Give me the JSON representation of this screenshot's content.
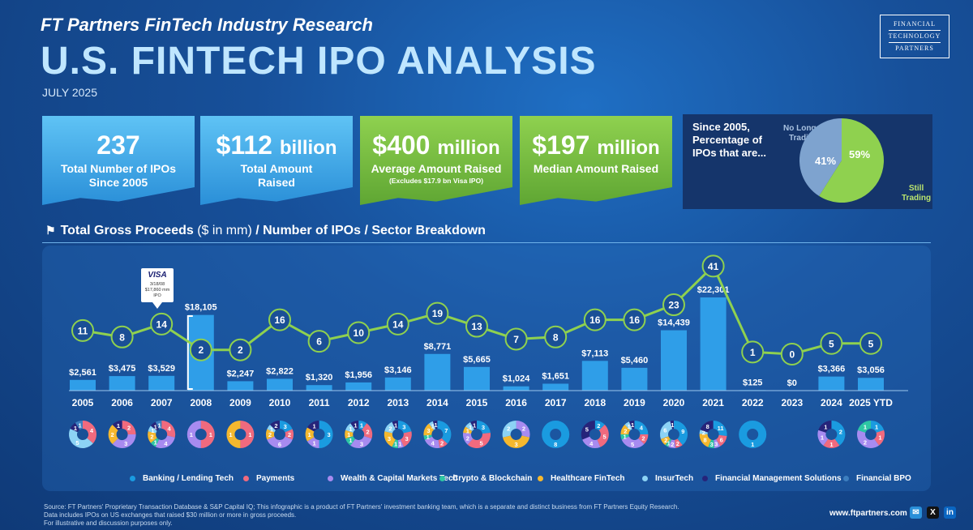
{
  "header": {
    "supertitle": "FT Partners FinTech Industry Research",
    "title": "U.S. FINTECH IPO ANALYSIS",
    "date": "JULY 2025",
    "logo": [
      "FINANCIAL",
      "TECHNOLOGY",
      "PARTNERS"
    ]
  },
  "stats": [
    {
      "value": "237",
      "unit": "",
      "label1": "Total Number of IPOs",
      "label2": "Since 2005",
      "note": ""
    },
    {
      "value": "$112",
      "unit": "billion",
      "label1": "Total Amount",
      "label2": "Raised",
      "note": ""
    },
    {
      "value": "$400",
      "unit": "million",
      "label1": "Average Amount Raised",
      "label2": "",
      "note": "(Excludes $17.9 bn Visa IPO)"
    },
    {
      "value": "$197",
      "unit": "million",
      "label1": "Median Amount Raised",
      "label2": "",
      "note": ""
    }
  ],
  "pie": {
    "question": [
      "Since 2005,",
      "Percentage of",
      "IPOs that are..."
    ],
    "no_longer_label": [
      "No Longer",
      "Trading"
    ],
    "still_label": [
      "Still",
      "Trading"
    ],
    "no_longer_pct": 41,
    "still_pct": 59,
    "no_longer_text": "41%",
    "still_text": "59%",
    "no_longer_color": "#7ea3cf",
    "still_color": "#8fd14f"
  },
  "section": {
    "bold1": "Total Gross Proceeds",
    "light": " ($ in mm) ",
    "bold2": "/ Number of IPOs / Sector Breakdown"
  },
  "callout": {
    "brand": "VISA",
    "lines": [
      "3/18/08",
      "$17,860 mm",
      "IPO"
    ]
  },
  "chart_data": {
    "type": "bar",
    "title": "Total Gross Proceeds ($ in mm) / Number of IPOs / Sector Breakdown",
    "categories": [
      "2005",
      "2006",
      "2007",
      "2008",
      "2009",
      "2010",
      "2011",
      "2012",
      "2013",
      "2014",
      "2015",
      "2016",
      "2017",
      "2018",
      "2019",
      "2020",
      "2021",
      "2022",
      "2023",
      "2024",
      "2025 YTD"
    ],
    "series": [
      {
        "name": "Total Gross Proceeds ($ in mm)",
        "values": [
          2561,
          3475,
          3529,
          18105,
          2247,
          2822,
          1320,
          1956,
          3146,
          8771,
          5665,
          1024,
          1651,
          7113,
          5460,
          14439,
          22301,
          125,
          0,
          3366,
          3056
        ]
      },
      {
        "name": "Number of IPOs",
        "values": [
          11,
          8,
          14,
          2,
          2,
          16,
          6,
          10,
          14,
          19,
          13,
          7,
          8,
          16,
          16,
          23,
          41,
          1,
          0,
          5,
          5
        ]
      }
    ],
    "value_labels": [
      "$2,561",
      "$3,475",
      "$3,529",
      "$18,105",
      "$2,247",
      "$2,822",
      "$1,320",
      "$1,956",
      "$3,146",
      "$8,771",
      "$5,665",
      "$1,024",
      "$1,651",
      "$7,113",
      "$5,460",
      "$14,439",
      "$22,301",
      "$125",
      "$0",
      "$3,366",
      "$3,056"
    ],
    "sectors": [
      "Banking / Lending Tech",
      "Payments",
      "Wealth & Capital Markets Tech",
      "Crypto & Blockchain",
      "Healthcare FinTech",
      "InsurTech",
      "Financial Management Solutions",
      "Financial BPO"
    ],
    "sector_colors": [
      "#1a9be0",
      "#f06a7e",
      "#a78bf0",
      "#2dc6a4",
      "#f5b82e",
      "#8cd3f5",
      "#26247a",
      "#3d7fc0"
    ],
    "sector_breakdown": [
      [
        0,
        4,
        0,
        0,
        0,
        5,
        1,
        1
      ],
      [
        0,
        2,
        3,
        0,
        2,
        0,
        1,
        0
      ],
      [
        0,
        4,
        4,
        1,
        2,
        1,
        1,
        1
      ],
      [
        0,
        1,
        1,
        0,
        0,
        0,
        0,
        0
      ],
      [
        0,
        1,
        0,
        0,
        1,
        0,
        0,
        0
      ],
      [
        3,
        2,
        6,
        0,
        2,
        1,
        2,
        0
      ],
      [
        3,
        0,
        1,
        0,
        1,
        0,
        1,
        0
      ],
      [
        1,
        2,
        3,
        1,
        1,
        1,
        1,
        0
      ],
      [
        3,
        3,
        1,
        1,
        3,
        2,
        1,
        0
      ],
      [
        7,
        2,
        4,
        1,
        3,
        1,
        1,
        0
      ],
      [
        3,
        5,
        2,
        0,
        1,
        1,
        1,
        0
      ],
      [
        0,
        0,
        2,
        0,
        3,
        2,
        0,
        0
      ],
      [
        8,
        0,
        0,
        0,
        0,
        0,
        0,
        0
      ],
      [
        2,
        5,
        4,
        0,
        0,
        0,
        5,
        0
      ],
      [
        4,
        2,
        5,
        1,
        2,
        1,
        1,
        0
      ],
      [
        9,
        2,
        2,
        1,
        2,
        6,
        1,
        0
      ],
      [
        11,
        6,
        3,
        3,
        8,
        2,
        8,
        0
      ],
      [
        1,
        0,
        0,
        0,
        0,
        0,
        0,
        0
      ],
      [
        0,
        0,
        0,
        0,
        0,
        0,
        0,
        0
      ],
      [
        2,
        1,
        1,
        0,
        0,
        0,
        1,
        0
      ],
      [
        1,
        1,
        2,
        1,
        0,
        0,
        0,
        0
      ]
    ]
  },
  "footer": {
    "lines": [
      "Source: FT Partners' Proprietary Transaction Database & S&P Capital IQ; This infographic is a product of FT Partners' investment banking team, which is a separate and distinct business from FT Partners Equity Research.",
      "Data includes IPOs on US exchanges that raised $30 million or more in gross proceeds.",
      "For illustrative and discussion purposes only."
    ],
    "website": "www.ftpartners.com",
    "social": [
      "email-icon",
      "x-icon",
      "linkedin-icon"
    ]
  }
}
